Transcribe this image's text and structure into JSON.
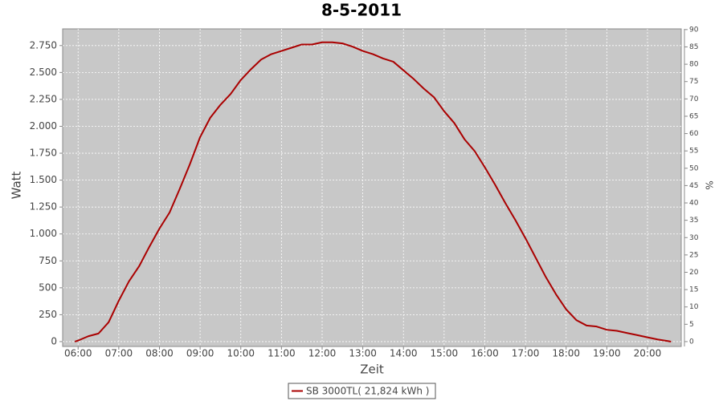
{
  "chart_data": {
    "type": "line",
    "title": "8-5-2011",
    "x_label": "Zeit",
    "y_label": "Watt",
    "y2_label": "%",
    "x": [
      5.92,
      6,
      6.25,
      6.5,
      6.75,
      7,
      7.25,
      7.5,
      7.75,
      8,
      8.25,
      8.5,
      8.75,
      9,
      9.25,
      9.5,
      9.75,
      10,
      10.25,
      10.5,
      10.75,
      11,
      11.25,
      11.5,
      11.75,
      12,
      12.25,
      12.5,
      12.75,
      13,
      13.25,
      13.5,
      13.75,
      14,
      14.25,
      14.5,
      14.75,
      15,
      15.25,
      15.5,
      15.75,
      16,
      16.25,
      16.5,
      16.75,
      17,
      17.25,
      17.5,
      17.75,
      18,
      18.25,
      18.5,
      18.75,
      19,
      19.25,
      19.5,
      19.75,
      20,
      20.25,
      20.5,
      20.58
    ],
    "series": [
      {
        "name": "SB 3000TL( 21,824 kWh )",
        "color": "#aa0000",
        "values": [
          0,
          10,
          50,
          75,
          180,
          380,
          560,
          700,
          880,
          1050,
          1200,
          1420,
          1650,
          1900,
          2080,
          2200,
          2300,
          2430,
          2530,
          2620,
          2670,
          2700,
          2730,
          2760,
          2760,
          2780,
          2780,
          2770,
          2740,
          2700,
          2670,
          2630,
          2600,
          2520,
          2440,
          2350,
          2270,
          2140,
          2030,
          1880,
          1770,
          1620,
          1460,
          1290,
          1130,
          960,
          780,
          600,
          440,
          300,
          200,
          150,
          140,
          110,
          100,
          80,
          60,
          40,
          20,
          5,
          0
        ]
      }
    ],
    "xlim": [
      5.62,
      20.83
    ],
    "xticks": [
      {
        "value": 6,
        "label": "06:00"
      },
      {
        "value": 7,
        "label": "07:00"
      },
      {
        "value": 8,
        "label": "08:00"
      },
      {
        "value": 9,
        "label": "09:00"
      },
      {
        "value": 10,
        "label": "10:00"
      },
      {
        "value": 11,
        "label": "11:00"
      },
      {
        "value": 12,
        "label": "12:00"
      },
      {
        "value": 13,
        "label": "13:00"
      },
      {
        "value": 14,
        "label": "14:00"
      },
      {
        "value": 15,
        "label": "15:00"
      },
      {
        "value": 16,
        "label": "16:00"
      },
      {
        "value": 17,
        "label": "17:00"
      },
      {
        "value": 18,
        "label": "18:00"
      },
      {
        "value": 19,
        "label": "19:00"
      },
      {
        "value": 20,
        "label": "20:00"
      }
    ],
    "ylim": [
      -45,
      2905
    ],
    "yticks": [
      0,
      250,
      500,
      750,
      {
        "value": 1000,
        "label": "1.000"
      },
      {
        "value": 1250,
        "label": "1.250"
      },
      {
        "value": 1500,
        "label": "1.500"
      },
      {
        "value": 1750,
        "label": "1.750"
      },
      {
        "value": 2000,
        "label": "2.000"
      },
      {
        "value": 2250,
        "label": "2.250"
      },
      {
        "value": 2500,
        "label": "2.500"
      },
      {
        "value": 2750,
        "label": "2.750"
      }
    ],
    "y2lim": [
      -1.4,
      90.2
    ],
    "y2ticks": [
      0,
      5,
      10,
      15,
      20,
      25,
      30,
      35,
      40,
      45,
      50,
      55,
      60,
      65,
      70,
      75,
      80,
      85,
      90
    ],
    "grid": true,
    "plot_background": "#c8c8c8",
    "legend": "bottom"
  }
}
